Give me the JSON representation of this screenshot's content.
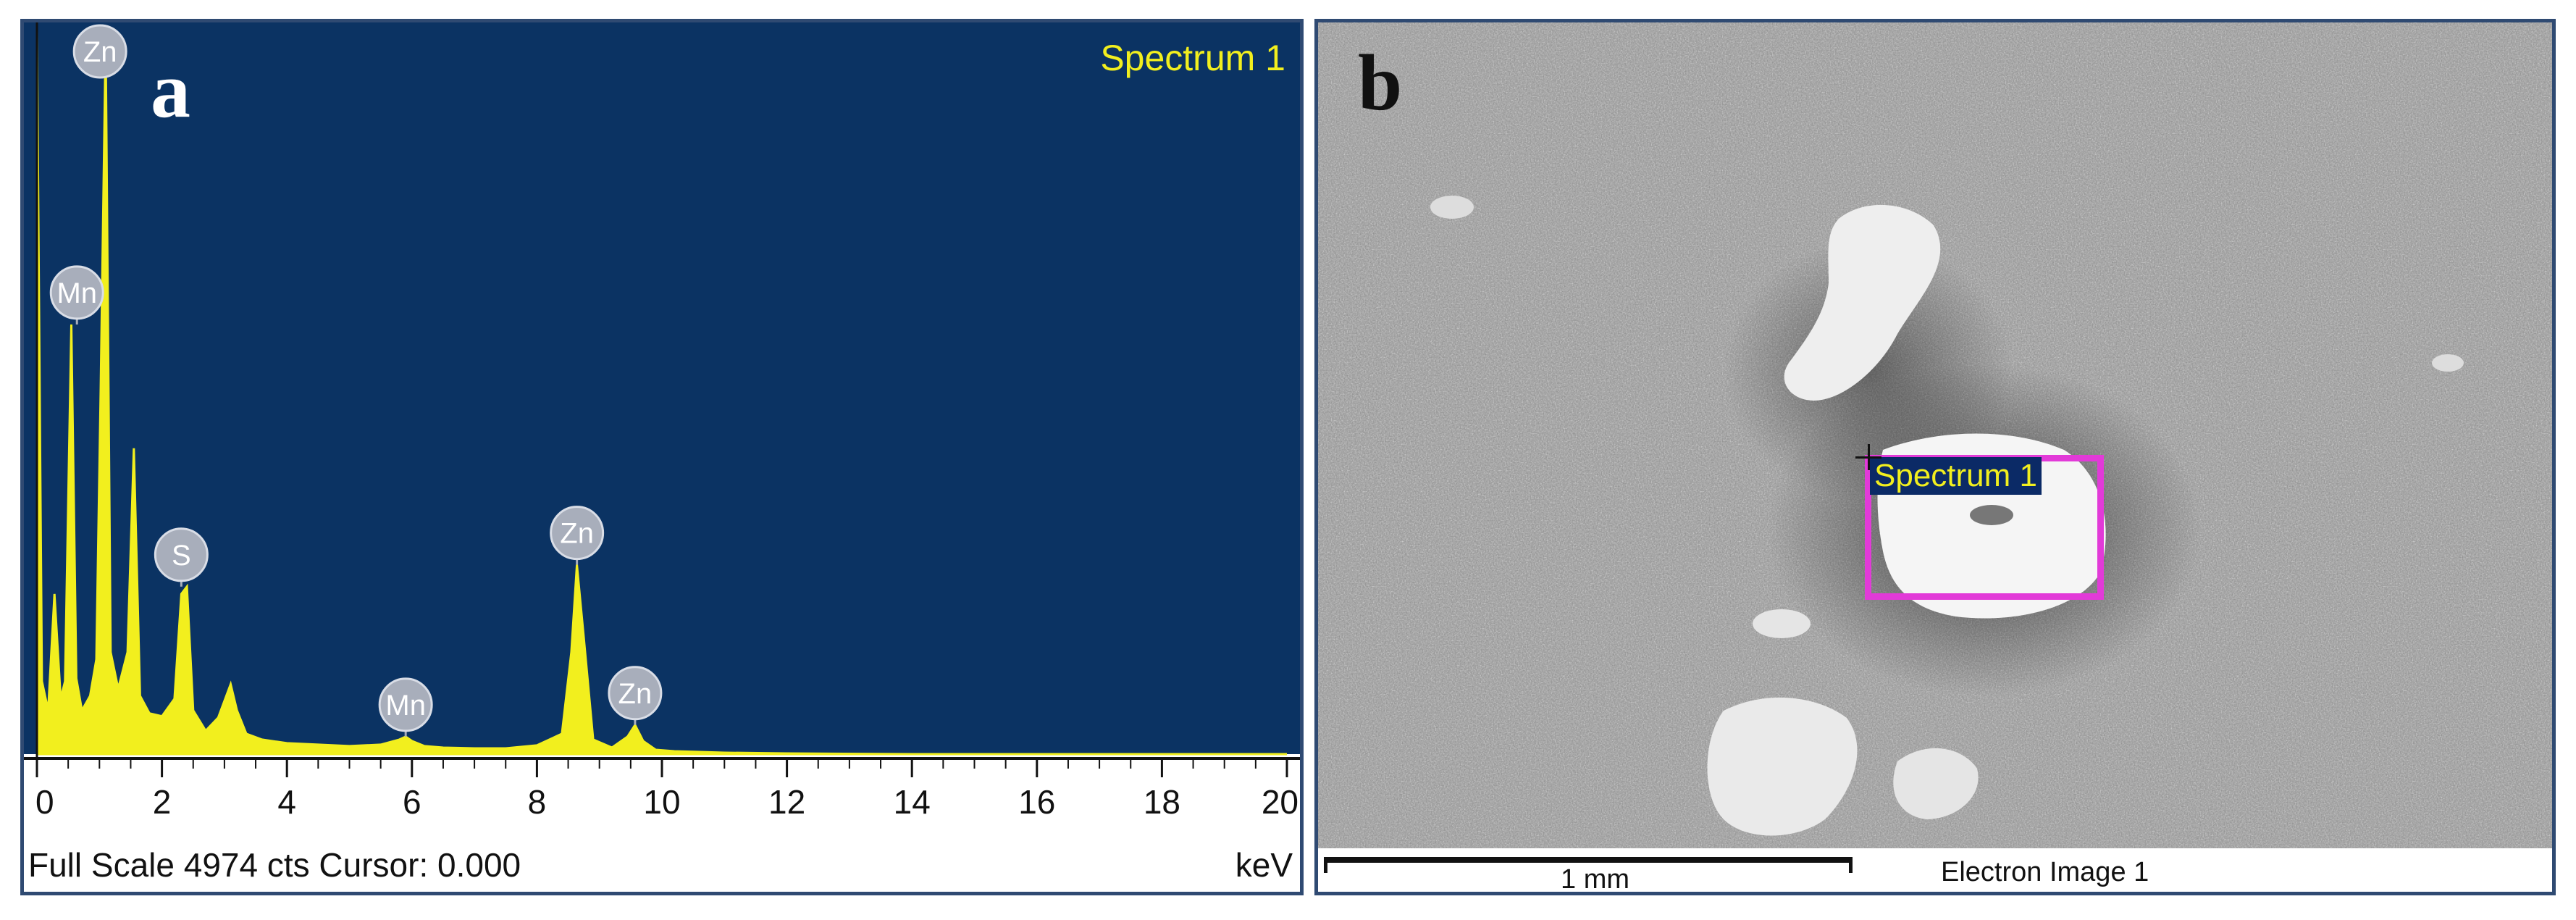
{
  "panel_a": {
    "letter": "a",
    "title": "Spectrum 1",
    "status_line": "Full Scale 4974 cts Cursor: 0.000",
    "unit": "keV",
    "colors": {
      "plot_bg": "#0b3363",
      "spectrum": "#f2ef1e",
      "marker": "#a8aebb"
    }
  },
  "chart_data": {
    "type": "area",
    "title": "Spectrum 1",
    "xlabel": "keV",
    "ylabel": "",
    "xlim": [
      0,
      20
    ],
    "ylim": [
      0,
      4974
    ],
    "full_scale_cts": 4974,
    "x_ticks": [
      "0",
      "2",
      "4",
      "6",
      "8",
      "10",
      "12",
      "14",
      "16",
      "18",
      "20"
    ],
    "grid": false,
    "series": [
      {
        "x": [
          0.0,
          0.08,
          0.18,
          0.28,
          0.38,
          0.45,
          0.55,
          0.63,
          0.72,
          0.85,
          0.95,
          1.02,
          1.1,
          1.18,
          1.3,
          1.45,
          1.55,
          1.65,
          1.8,
          2.0,
          2.2,
          2.31,
          2.4,
          2.5,
          2.7,
          2.9,
          3.1,
          3.2,
          3.35,
          3.6,
          4.0,
          4.5,
          5.0,
          5.5,
          5.8,
          5.9,
          6.0,
          6.2,
          6.5,
          7.0,
          7.5,
          8.0,
          8.4,
          8.55,
          8.64,
          8.75,
          8.9,
          9.2,
          9.45,
          9.57,
          9.7,
          9.9,
          10.2,
          11.0,
          12.0,
          14.0,
          16.0,
          18.0,
          20.0
        ],
        "y": [
          4974,
          500,
          300,
          1100,
          380,
          500,
          2950,
          520,
          300,
          400,
          650,
          2500,
          4920,
          700,
          450,
          700,
          2100,
          400,
          280,
          260,
          380,
          1100,
          1150,
          300,
          160,
          250,
          480,
          300,
          140,
          100,
          75,
          65,
          55,
          65,
          100,
          120,
          90,
          55,
          45,
          40,
          40,
          60,
          140,
          700,
          1300,
          800,
          100,
          45,
          120,
          200,
          90,
          30,
          20,
          10,
          5,
          0,
          0,
          0,
          0
        ]
      }
    ],
    "peak_labels": [
      {
        "element": "Zn",
        "x": 1.01,
        "y": 4974
      },
      {
        "element": "Mn",
        "x": 0.64,
        "y": 2950
      },
      {
        "element": "S",
        "x": 2.31,
        "y": 1150
      },
      {
        "element": "Mn",
        "x": 5.9,
        "y": 120
      },
      {
        "element": "Zn",
        "x": 8.64,
        "y": 1300
      },
      {
        "element": "Zn",
        "x": 9.57,
        "y": 200
      }
    ]
  },
  "panel_b": {
    "letter": "b",
    "roi_label": "Spectrum 1",
    "scale_label": "1 mm",
    "caption": "Electron Image 1",
    "colors": {
      "roi_box": "#e23ad8",
      "roi_label_bg": "#0b2a66",
      "roi_label_text": "#f2ef1e"
    }
  }
}
